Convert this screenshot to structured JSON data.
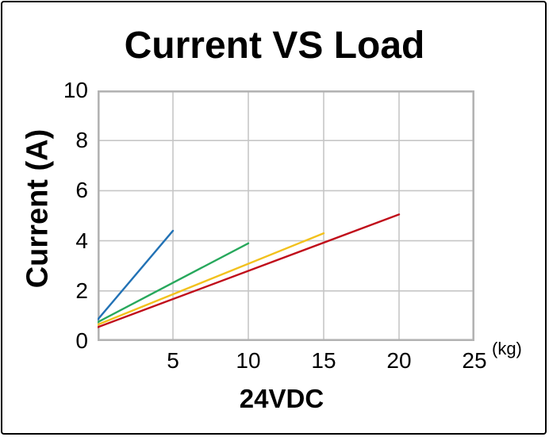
{
  "chart_data": {
    "type": "line",
    "title": "Current VS Load",
    "xlabel": "24VDC",
    "ylabel": "Current (A)",
    "x_unit": "(kg)",
    "xlim": [
      0,
      25
    ],
    "ylim": [
      0,
      10
    ],
    "x_ticks": [
      5,
      10,
      15,
      20,
      25
    ],
    "y_ticks": [
      0,
      2,
      4,
      6,
      8,
      10
    ],
    "grid": true,
    "legend": "none",
    "colors": {
      "background": "#FFFFFF",
      "text": "#000000",
      "grid": "#C6C6C6",
      "frame": "#B3B3B3",
      "border": "#000000"
    },
    "series": [
      {
        "name": "blue-line",
        "color": "#2272B5",
        "points": [
          [
            0,
            0.85
          ],
          [
            5,
            4.4
          ]
        ]
      },
      {
        "name": "green-line",
        "color": "#27A85C",
        "points": [
          [
            0,
            0.75
          ],
          [
            10,
            3.9
          ]
        ]
      },
      {
        "name": "yellow-line",
        "color": "#F2C11D",
        "points": [
          [
            0,
            0.65
          ],
          [
            15,
            4.3
          ]
        ]
      },
      {
        "name": "red-line",
        "color": "#C00D1A",
        "points": [
          [
            0,
            0.55
          ],
          [
            20,
            5.05
          ]
        ]
      }
    ]
  }
}
